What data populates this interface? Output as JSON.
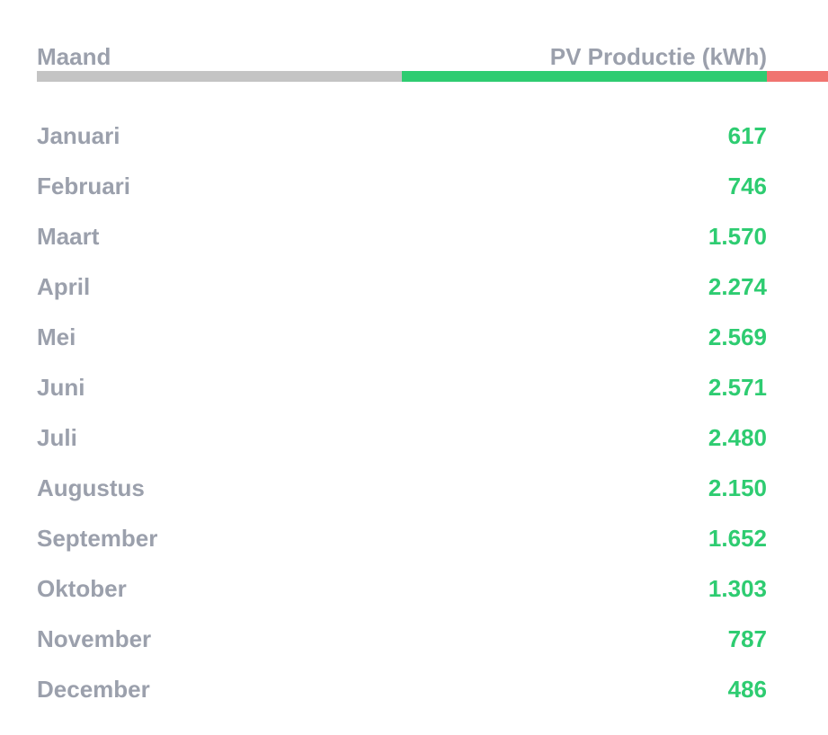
{
  "colors": {
    "header_text": "#9ba0ac",
    "month_text": "#9ba0ac",
    "value_text": "#2ecc71",
    "bar_grey": "#c4c4c4",
    "bar_green": "#2ecc71",
    "bar_red": "#f07470"
  },
  "table": {
    "headers": {
      "month": "Maand",
      "production": "PV Productie (kWh)"
    },
    "rows": [
      {
        "month": "Januari",
        "value": "617"
      },
      {
        "month": "Februari",
        "value": "746"
      },
      {
        "month": "Maart",
        "value": "1.570"
      },
      {
        "month": "April",
        "value": "2.274"
      },
      {
        "month": "Mei",
        "value": "2.569"
      },
      {
        "month": "Juni",
        "value": "2.571"
      },
      {
        "month": "Juli",
        "value": "2.480"
      },
      {
        "month": "Augustus",
        "value": "2.150"
      },
      {
        "month": "September",
        "value": "1.652"
      },
      {
        "month": "Oktober",
        "value": "1.303"
      },
      {
        "month": "November",
        "value": "787"
      },
      {
        "month": "December",
        "value": "486"
      }
    ]
  }
}
